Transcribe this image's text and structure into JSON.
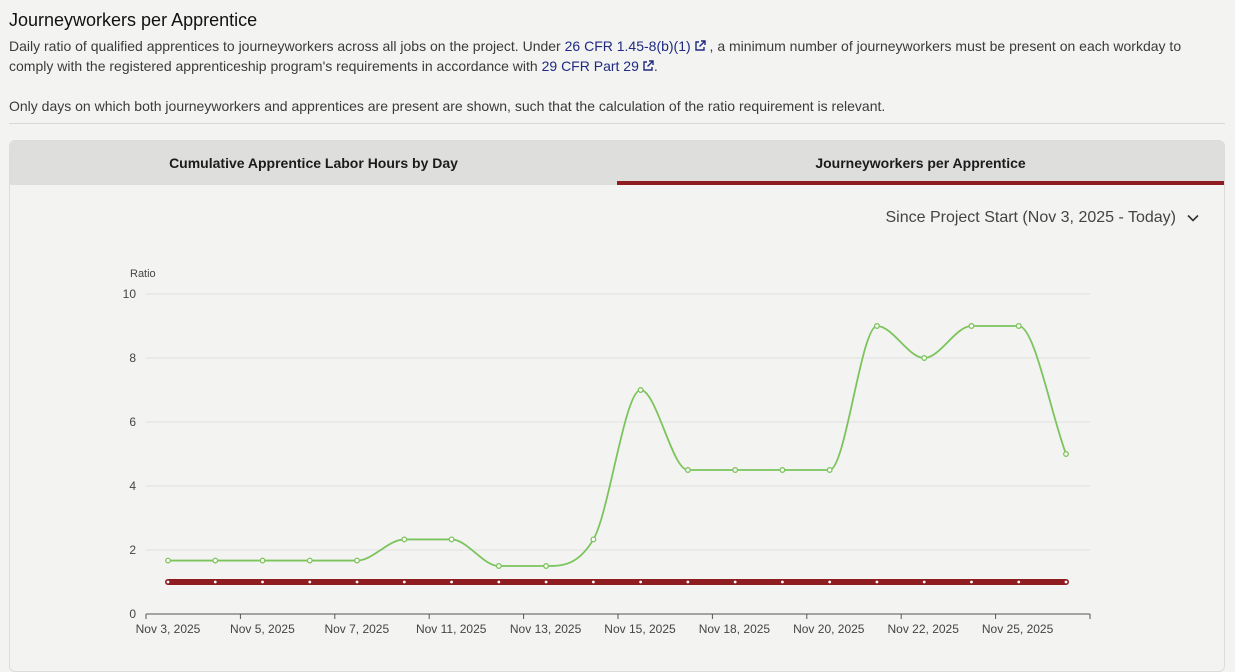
{
  "header": {
    "title": "Journeyworkers per Apprentice",
    "desc_part1": "Daily ratio of qualified apprentices to journeyworkers across all jobs on the project. Under ",
    "link1": "26 CFR 1.45-8(b)(1)",
    "desc_part2": " , a minimum number of journeyworkers must be present on each workday to comply with the registered apprenticeship program's requirements in accordance with ",
    "link2": "29 CFR Part 29",
    "desc_part3": ".",
    "desc2": "Only days on which both journeyworkers and apprentices are present are shown, such that the calculation of the ratio requirement is relevant."
  },
  "tabs": [
    {
      "label": "Cumulative Apprentice Labor Hours by Day",
      "active": false
    },
    {
      "label": "Journeyworkers per Apprentice",
      "active": true
    }
  ],
  "range_select": {
    "label": "Since Project Start (Nov 3, 2025 - Today)"
  },
  "icons": {
    "external_link": "external-link-icon",
    "dropdown": "chevron-down-icon"
  },
  "colors": {
    "series": "#7cc45c",
    "requirement": "#8f1c21",
    "tab_active": "#8f1c21",
    "link": "#1f2a80"
  },
  "chart_data": {
    "type": "line",
    "ylabel": "Ratio",
    "ylim": [
      0,
      10
    ],
    "y_ticks": [
      0,
      2,
      4,
      6,
      8,
      10
    ],
    "grid": true,
    "x_labels": [
      "Nov 3, 2025",
      "Nov 5, 2025",
      "Nov 7, 2025",
      "Nov 11, 2025",
      "Nov 13, 2025",
      "Nov 15, 2025",
      "Nov 18, 2025",
      "Nov 20, 2025",
      "Nov 22, 2025",
      "Nov 25, 2025"
    ],
    "series": [
      {
        "values": [
          1.67,
          1.67,
          1.67,
          1.67,
          1.67,
          2.33,
          2.33,
          1.5,
          1.5,
          2.33,
          7,
          4.5,
          4.5,
          4.5,
          4.5,
          9,
          8,
          9,
          9,
          5
        ],
        "color": "#7cc45c"
      },
      {
        "values": [
          1,
          1,
          1,
          1,
          1,
          1,
          1,
          1,
          1,
          1,
          1,
          1,
          1,
          1,
          1,
          1,
          1,
          1,
          1,
          1
        ],
        "color": "#8f1c21"
      }
    ]
  }
}
